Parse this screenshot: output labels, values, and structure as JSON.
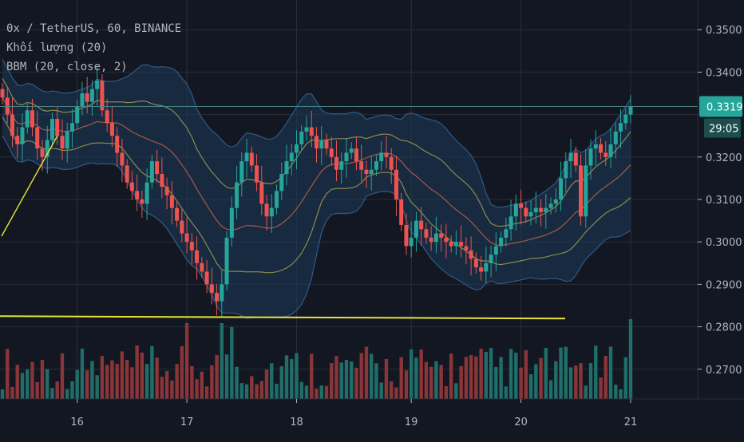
{
  "legend": {
    "symbol_line": "0x / TetherUS, 60, BINANCE",
    "volume_line": "Khối lượng (20)",
    "bbm_line": "BBM (20, close, 2)"
  },
  "price_axis": {
    "labels": [
      "0.3500",
      "0.3400",
      "0.3200",
      "0.3100",
      "0.3000",
      "0.2900",
      "0.2800",
      "0.2700"
    ],
    "current_price": "0.3319",
    "countdown": "29:05"
  },
  "time_axis": {
    "labels": [
      "16",
      "17",
      "18",
      "19",
      "20",
      "21"
    ]
  },
  "colors": {
    "background": "#131722",
    "grid": "#2a2e39",
    "up": "#26a69a",
    "down": "#ef5350",
    "vol_up": "#1f6e6a",
    "vol_down": "#8a3538",
    "bb_fill": "#1c3a57",
    "bb_edge": "#2f5a86",
    "bb_mid": "#a8584a",
    "bbm_band": "#8d8a50",
    "trendline": "#e7e33a",
    "price_line": "#4a7f80",
    "axis_text": "#b2b5be"
  },
  "chart_data": {
    "type": "candlestick",
    "title": "0x / TetherUS, 60, BINANCE",
    "x_labels": [
      "16",
      "17",
      "18",
      "19",
      "20",
      "21"
    ],
    "ylim": [
      0.263,
      0.357
    ],
    "y_ticks": [
      0.35,
      0.34,
      0.32,
      0.31,
      0.3,
      0.29,
      0.28,
      0.27
    ],
    "current_price": 0.3319,
    "support_line": 0.2825,
    "series": [
      {
        "name": "0x / TetherUS",
        "kind": "ohlc",
        "close": [
          0.334,
          0.33,
          0.325,
          0.323,
          0.327,
          0.331,
          0.327,
          0.322,
          0.32,
          0.324,
          0.329,
          0.325,
          0.322,
          0.326,
          0.328,
          0.332,
          0.335,
          0.333,
          0.336,
          0.338,
          0.331,
          0.328,
          0.325,
          0.321,
          0.318,
          0.314,
          0.312,
          0.31,
          0.309,
          0.314,
          0.319,
          0.316,
          0.313,
          0.311,
          0.308,
          0.305,
          0.302,
          0.3,
          0.298,
          0.295,
          0.293,
          0.29,
          0.288,
          0.286,
          0.29,
          0.301,
          0.308,
          0.314,
          0.319,
          0.321,
          0.318,
          0.314,
          0.309,
          0.306,
          0.308,
          0.312,
          0.316,
          0.319,
          0.321,
          0.323,
          0.326,
          0.327,
          0.325,
          0.322,
          0.324,
          0.322,
          0.32,
          0.317,
          0.319,
          0.321,
          0.322,
          0.319,
          0.317,
          0.316,
          0.317,
          0.319,
          0.321,
          0.32,
          0.317,
          0.31,
          0.304,
          0.299,
          0.301,
          0.305,
          0.303,
          0.301,
          0.3,
          0.302,
          0.301,
          0.3,
          0.299,
          0.3,
          0.299,
          0.298,
          0.296,
          0.294,
          0.293,
          0.295,
          0.297,
          0.299,
          0.301,
          0.303,
          0.306,
          0.309,
          0.308,
          0.306,
          0.307,
          0.308,
          0.307,
          0.308,
          0.309,
          0.31,
          0.315,
          0.319,
          0.321,
          0.318,
          0.306,
          0.318,
          0.322,
          0.323,
          0.321,
          0.32,
          0.323,
          0.326,
          0.328,
          0.33,
          0.3319
        ]
      },
      {
        "name": "Khối lượng",
        "kind": "volume"
      },
      {
        "name": "BBM (20, close, 2)",
        "kind": "bands"
      }
    ]
  }
}
